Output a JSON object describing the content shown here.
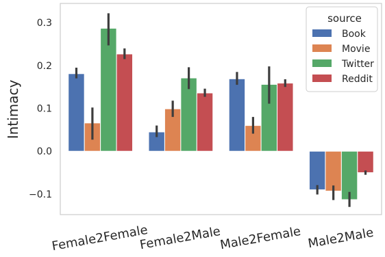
{
  "chart_data": {
    "type": "bar",
    "categories": [
      "Female2Female",
      "Female2Male",
      "Male2Female",
      "Male2Male"
    ],
    "series": [
      {
        "name": "Book",
        "color": "#4c72b0",
        "values": [
          0.181,
          0.045,
          0.169,
          -0.09
        ],
        "err_low": [
          0.17,
          0.033,
          0.155,
          -0.101
        ],
        "err_high": [
          0.195,
          0.06,
          0.185,
          -0.079
        ]
      },
      {
        "name": "Movie",
        "color": "#dd8452",
        "values": [
          0.066,
          0.099,
          0.06,
          -0.093
        ],
        "err_low": [
          0.027,
          0.08,
          0.041,
          -0.114
        ],
        "err_high": [
          0.102,
          0.118,
          0.08,
          -0.08
        ]
      },
      {
        "name": "Twitter",
        "color": "#55a868",
        "values": [
          0.287,
          0.171,
          0.156,
          -0.113
        ],
        "err_low": [
          0.247,
          0.145,
          0.111,
          -0.13
        ],
        "err_high": [
          0.322,
          0.196,
          0.198,
          -0.095
        ]
      },
      {
        "name": "Reddit",
        "color": "#c44e52",
        "values": [
          0.227,
          0.136,
          0.159,
          -0.05
        ],
        "err_low": [
          0.215,
          0.127,
          0.15,
          -0.055
        ],
        "err_high": [
          0.24,
          0.146,
          0.168,
          -0.045
        ]
      }
    ],
    "ylabel": "Intimacy",
    "xlabel": "",
    "ylim": [
      -0.148,
      0.345
    ],
    "yticks": [
      -0.1,
      0.0,
      0.1,
      0.2,
      0.3
    ],
    "ytick_labels": [
      "−0.1",
      "0.0",
      "0.1",
      "0.2",
      "0.3"
    ],
    "legend": {
      "title": "source",
      "position": "top-right"
    },
    "grid": false,
    "x_tick_rotation": -10
  }
}
